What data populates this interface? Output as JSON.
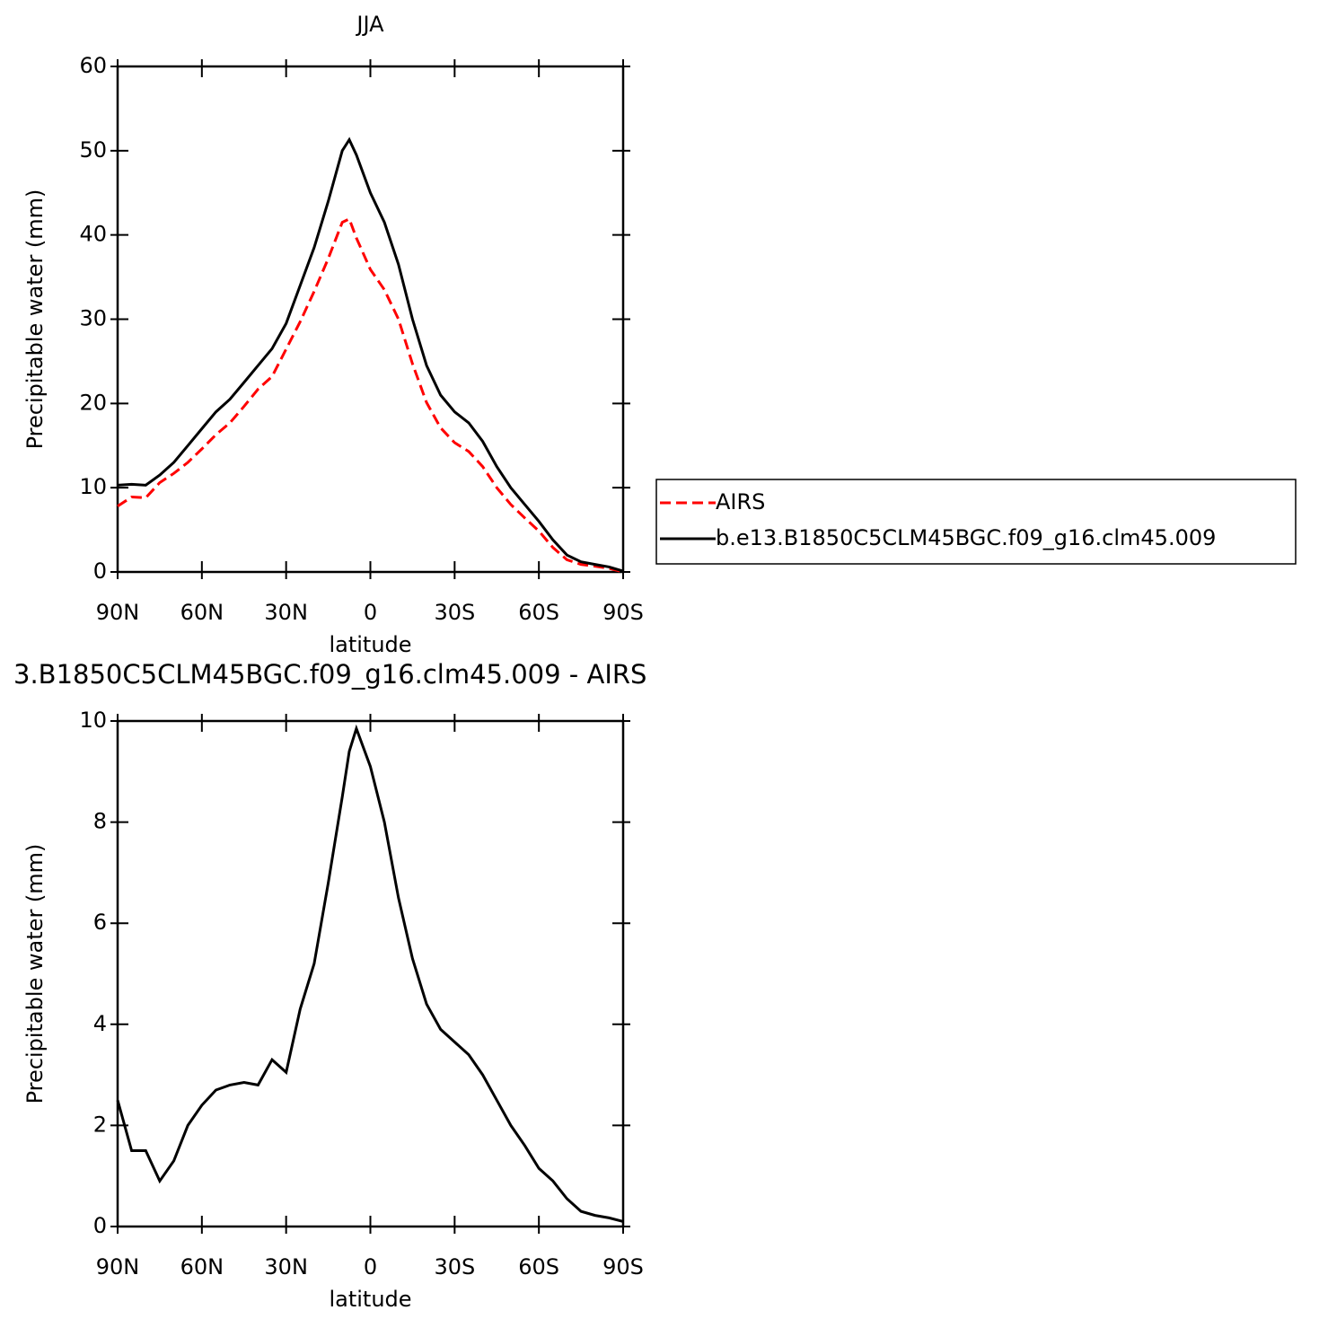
{
  "chart_data": [
    {
      "type": "line",
      "title": "JJA",
      "xlabel": "latitude",
      "ylabel": "Precipitable water (mm)",
      "x": [
        90,
        85,
        80,
        75,
        70,
        65,
        60,
        55,
        50,
        45,
        40,
        35,
        30,
        25,
        20,
        15,
        10,
        7.5,
        5,
        0,
        -5,
        -10,
        -15,
        -20,
        -25,
        -30,
        -35,
        -40,
        -45,
        -50,
        -55,
        -60,
        -65,
        -70,
        -75,
        -80,
        -85,
        -90
      ],
      "series": [
        {
          "name": "AIRS",
          "color": "#ff0000",
          "dash": true,
          "values": [
            7.8,
            8.9,
            8.8,
            10.6,
            11.7,
            13,
            14.6,
            16.3,
            17.7,
            19.65,
            21.7,
            23.2,
            26.45,
            29.7,
            33.3,
            37.2,
            41.5,
            41.9,
            39.65,
            35.9,
            33.5,
            30,
            24.7,
            20.1,
            17.1,
            15.35,
            14.3,
            12.5,
            10,
            8,
            6.4,
            4.85,
            2.9,
            1.45,
            0.9,
            0.68,
            0.43,
            0.0
          ]
        },
        {
          "name": "b.e13.B1850C5CLM45BGC.f09_g16.clm45.009",
          "color": "#000000",
          "dash": false,
          "values": [
            10.3,
            10.4,
            10.3,
            11.5,
            13,
            15,
            17,
            19,
            20.5,
            22.5,
            24.5,
            26.5,
            29.5,
            34,
            38.5,
            44,
            50,
            51.3,
            49.5,
            45,
            41.5,
            36.5,
            30,
            24.5,
            21,
            19,
            17.7,
            15.5,
            12.5,
            10,
            8,
            6,
            3.8,
            2,
            1.2,
            0.9,
            0.6,
            0.1
          ]
        }
      ],
      "xlim": [
        90,
        -90
      ],
      "xticks": [
        {
          "value": 90,
          "label": "90N"
        },
        {
          "value": 60,
          "label": "60N"
        },
        {
          "value": 30,
          "label": "30N"
        },
        0,
        {
          "value": -30,
          "label": "30S"
        },
        {
          "value": -60,
          "label": "60S"
        },
        {
          "value": -90,
          "label": "90S"
        }
      ],
      "ylim": [
        0,
        60
      ],
      "yticks": [
        0,
        10,
        20,
        30,
        40,
        50,
        60
      ],
      "legend": "right"
    },
    {
      "type": "line",
      "title": "3.B1850C5CLM45BGC.f09_g16.clm45.009 - AIRS",
      "xlabel": "latitude",
      "ylabel": "Precipitable water (mm)",
      "x": [
        90,
        85,
        80,
        75,
        70,
        65,
        60,
        55,
        50,
        45,
        40,
        35,
        30,
        25,
        20,
        15,
        10,
        7.5,
        5,
        0,
        -5,
        -10,
        -15,
        -20,
        -25,
        -30,
        -35,
        -40,
        -45,
        -50,
        -55,
        -60,
        -65,
        -70,
        -75,
        -80,
        -85,
        -90
      ],
      "series": [
        {
          "color": "#000000",
          "dash": false,
          "values": [
            2.5,
            1.5,
            1.5,
            0.9,
            1.3,
            2.0,
            2.4,
            2.7,
            2.8,
            2.85,
            2.8,
            3.3,
            3.05,
            4.3,
            5.2,
            6.8,
            8.5,
            9.4,
            9.85,
            9.1,
            8.0,
            6.5,
            5.3,
            4.4,
            3.9,
            3.65,
            3.4,
            3.0,
            2.5,
            2.0,
            1.6,
            1.15,
            0.9,
            0.55,
            0.3,
            0.22,
            0.17,
            0.1
          ]
        }
      ],
      "xlim": [
        90,
        -90
      ],
      "xticks": [
        {
          "value": 90,
          "label": "90N"
        },
        {
          "value": 60,
          "label": "60N"
        },
        {
          "value": 30,
          "label": "30N"
        },
        0,
        {
          "value": -30,
          "label": "30S"
        },
        {
          "value": -60,
          "label": "60S"
        },
        {
          "value": -90,
          "label": "90S"
        }
      ],
      "ylim": [
        0,
        10
      ],
      "yticks": [
        0,
        2,
        4,
        6,
        8,
        10
      ]
    }
  ]
}
